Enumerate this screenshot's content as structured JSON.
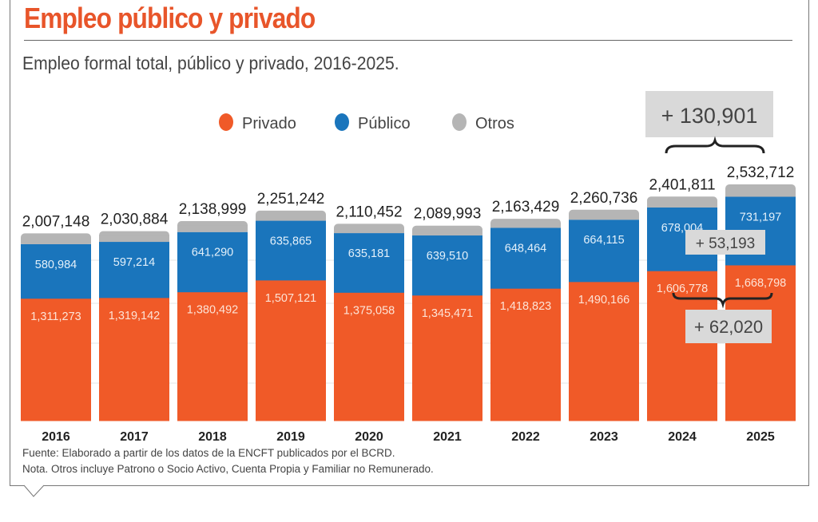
{
  "title": "Empleo público y privado",
  "subtitle": "Empleo formal total, público y privado, 2016-2025.",
  "chart_data": {
    "type": "bar",
    "stacked": true,
    "categories": [
      "2016",
      "2017",
      "2018",
      "2019",
      "2020",
      "2021",
      "2022",
      "2023",
      "2024",
      "2025"
    ],
    "series": [
      {
        "name": "Privado",
        "color": "#f05a28",
        "values": [
          1311273,
          1319142,
          1380492,
          1507121,
          1375058,
          1345471,
          1418823,
          1490166,
          1606778,
          1668798
        ]
      },
      {
        "name": "Público",
        "color": "#1a75bc",
        "values": [
          580984,
          597214,
          641290,
          635865,
          635181,
          639510,
          648464,
          664115,
          678004,
          731197
        ]
      },
      {
        "name": "Otros",
        "color": "#b5b5b5",
        "values": [
          114891,
          114528,
          117217,
          108256,
          100213,
          105012,
          96142,
          106455,
          117029,
          132717
        ]
      }
    ],
    "totals": [
      2007148,
      2030884,
      2138999,
      2251242,
      2110452,
      2089993,
      2163429,
      2260736,
      2401811,
      2532712
    ],
    "labels": {
      "privado": [
        "1,311,273",
        "1,319,142",
        "1,380,492",
        "1,507,121",
        "1,375,058",
        "1,345,471",
        "1,418,823",
        "1,490,166",
        "1,606,778",
        "1,668,798"
      ],
      "publico": [
        "580,984",
        "597,214",
        "641,290",
        "635,865",
        "635,181",
        "639,510",
        "648,464",
        "664,115",
        "678,004",
        "731,197"
      ],
      "totals": [
        "2,007,148",
        "2,030,884",
        "2,138,999",
        "2,251,242",
        "2,110,452",
        "2,089,993",
        "2,163,429",
        "2,260,736",
        "2,401,811",
        "2,532,712"
      ]
    },
    "legend_position": "top",
    "annotations": {
      "total_change": "+ 130,901",
      "public_change": "+ 53,193",
      "private_change": "+ 62,020"
    },
    "grid": true
  },
  "footer": {
    "source": "Fuente: Elaborado a partir de los datos de la ENCFT publicados por el BCRD.",
    "note": "Nota. Otros incluye Patrono o Socio Activo, Cuenta Propia y Familiar no Remunerado."
  }
}
